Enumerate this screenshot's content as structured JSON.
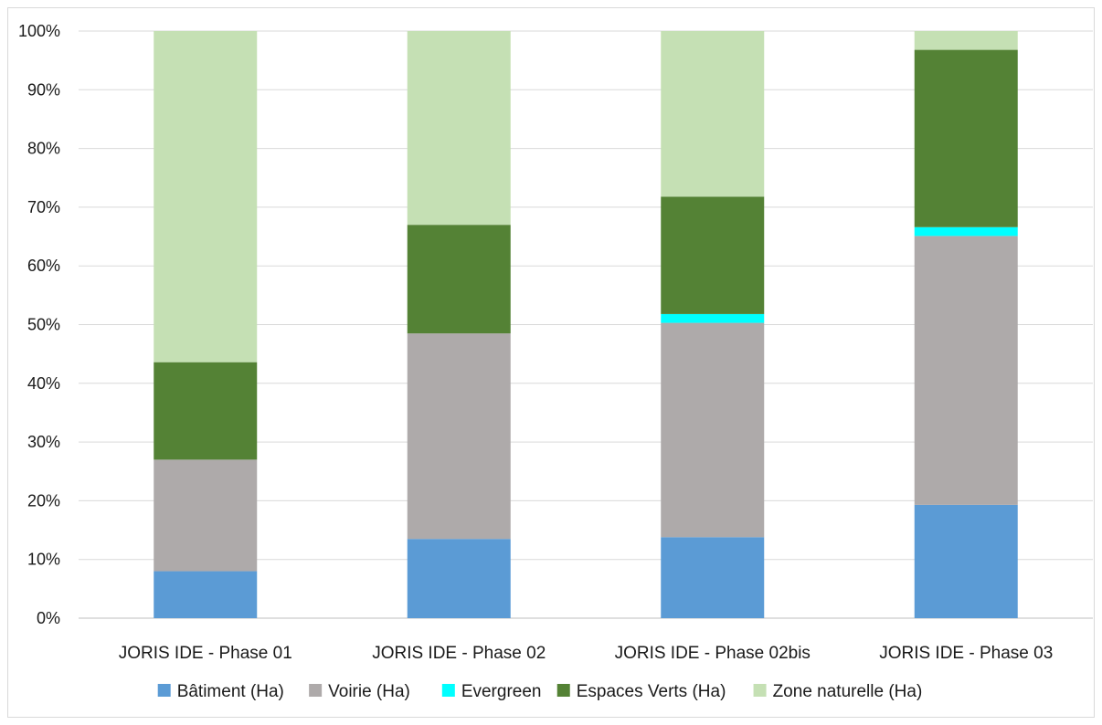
{
  "chart_data": {
    "type": "bar",
    "stacked": "percent",
    "categories": [
      "JORIS IDE - Phase 01",
      "JORIS IDE - Phase 02",
      "JORIS IDE - Phase 02bis",
      "JORIS IDE - Phase 03"
    ],
    "series": [
      {
        "name": "Bâtiment (Ha)",
        "color": "#5b9bd5",
        "values": [
          8,
          13.5,
          13.8,
          19.3
        ]
      },
      {
        "name": "Voirie (Ha)",
        "color": "#aeaaaa",
        "values": [
          19,
          35,
          36.5,
          45.8
        ]
      },
      {
        "name": "Evergreen",
        "color": "#00ffff",
        "values": [
          0,
          0,
          1.5,
          1.5
        ]
      },
      {
        "name": "Espaces Verts (Ha)",
        "color": "#548235",
        "values": [
          16.6,
          18.5,
          20.0,
          30.2
        ]
      },
      {
        "name": "Zone naturelle (Ha)",
        "color": "#c5e0b4",
        "values": [
          56.4,
          33.0,
          28.2,
          3.2
        ]
      }
    ],
    "ylim": [
      0,
      100
    ],
    "yticks": [
      "0%",
      "10%",
      "20%",
      "30%",
      "40%",
      "50%",
      "60%",
      "70%",
      "80%",
      "90%",
      "100%"
    ],
    "grid": true,
    "legend": "bottom",
    "title": "",
    "xlabel": "",
    "ylabel": ""
  }
}
